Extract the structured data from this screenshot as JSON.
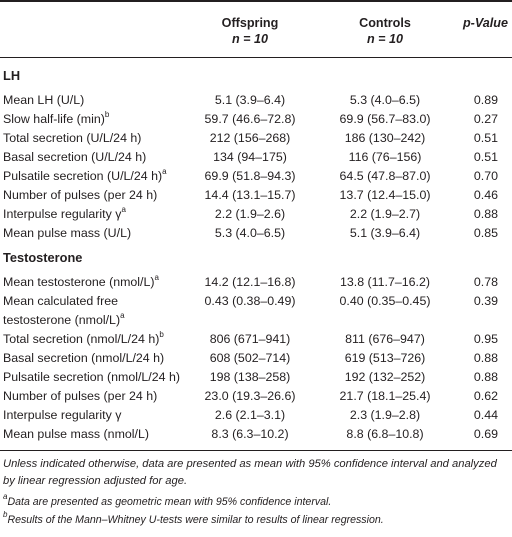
{
  "header": {
    "col1_title": "Offspring",
    "col1_n": "n = 10",
    "col2_title": "Controls",
    "col2_n": "n = 10",
    "col3_title": "p-Value"
  },
  "sections": [
    {
      "title": "LH",
      "rows": [
        {
          "label": "Mean LH (U/L)",
          "sup": "",
          "offspring": "5.1 (3.9–6.4)",
          "controls": "5.3 (4.0–6.5)",
          "p": "0.89"
        },
        {
          "label": "Slow half-life (min)",
          "sup": "b",
          "offspring": "59.7 (46.6–72.8)",
          "controls": "69.9 (56.7–83.0)",
          "p": "0.27"
        },
        {
          "label": "Total secretion (U/L/24 h)",
          "sup": "",
          "offspring": "212 (156–268)",
          "controls": "186 (130–242)",
          "p": "0.51"
        },
        {
          "label": "Basal secretion (U/L/24 h)",
          "sup": "",
          "offspring": "134 (94–175)",
          "controls": "116 (76–156)",
          "p": "0.51"
        },
        {
          "label": "Pulsatile secretion (U/L/24 h)",
          "sup": "a",
          "offspring": "69.9 (51.8–94.3)",
          "controls": "64.5 (47.8–87.0)",
          "p": "0.70"
        },
        {
          "label": "Number of pulses (per 24 h)",
          "sup": "",
          "offspring": "14.4 (13.1–15.7)",
          "controls": "13.7 (12.4–15.0)",
          "p": "0.46"
        },
        {
          "label": "Interpulse regularity γ",
          "sup": "a",
          "offspring": "2.2 (1.9–2.6)",
          "controls": "2.2 (1.9–2.7)",
          "p": "0.88"
        },
        {
          "label": "Mean pulse mass (U/L)",
          "sup": "",
          "offspring": "5.3 (4.0–6.5)",
          "controls": "5.1 (3.9–6.4)",
          "p": "0.85"
        }
      ]
    },
    {
      "title": "Testosterone",
      "rows": [
        {
          "label": "Mean testosterone (nmol/L)",
          "sup": "a",
          "offspring": "14.2 (12.1–16.8)",
          "controls": "13.8 (11.7–16.2)",
          "p": "0.78"
        },
        {
          "label": "Mean calculated free",
          "label2": "testosterone (nmol/L)",
          "sup": "a",
          "offspring": "0.43 (0.38–0.49)",
          "controls": "0.40 (0.35–0.45)",
          "p": "0.39"
        },
        {
          "label": "Total secretion (nmol/L/24 h)",
          "sup": "b",
          "offspring": "806 (671–941)",
          "controls": "811 (676–947)",
          "p": "0.95"
        },
        {
          "label": "Basal secretion (nmol/L/24 h)",
          "sup": "",
          "offspring": "608 (502–714)",
          "controls": "619 (513–726)",
          "p": "0.88"
        },
        {
          "label": "Pulsatile secretion (nmol/L/24 h)",
          "sup": "",
          "offspring": "198 (138–258)",
          "controls": "192 (132–252)",
          "p": "0.88"
        },
        {
          "label": "Number of pulses (per 24 h)",
          "sup": "",
          "offspring": "23.0 (19.3–26.6)",
          "controls": "21.7 (18.1–25.4)",
          "p": "0.62"
        },
        {
          "label": "Interpulse regularity γ",
          "sup": "",
          "offspring": "2.6 (2.1–3.1)",
          "controls": "2.3 (1.9–2.8)",
          "p": "0.44"
        },
        {
          "label": "Mean pulse mass (nmol/L)",
          "sup": "",
          "offspring": "8.3 (6.3–10.2)",
          "controls": "8.8 (6.8–10.8)",
          "p": "0.69"
        }
      ]
    }
  ],
  "footnotes": {
    "main": "Unless indicated otherwise, data are presented as mean with 95% confidence interval and analyzed by linear regression adjusted for age.",
    "a_marker": "a",
    "a_text": "Data are presented as geometric mean with 95% confidence interval.",
    "b_marker": "b",
    "b_text": "Results of the Mann–Whitney U-tests were similar to results of linear regression."
  }
}
